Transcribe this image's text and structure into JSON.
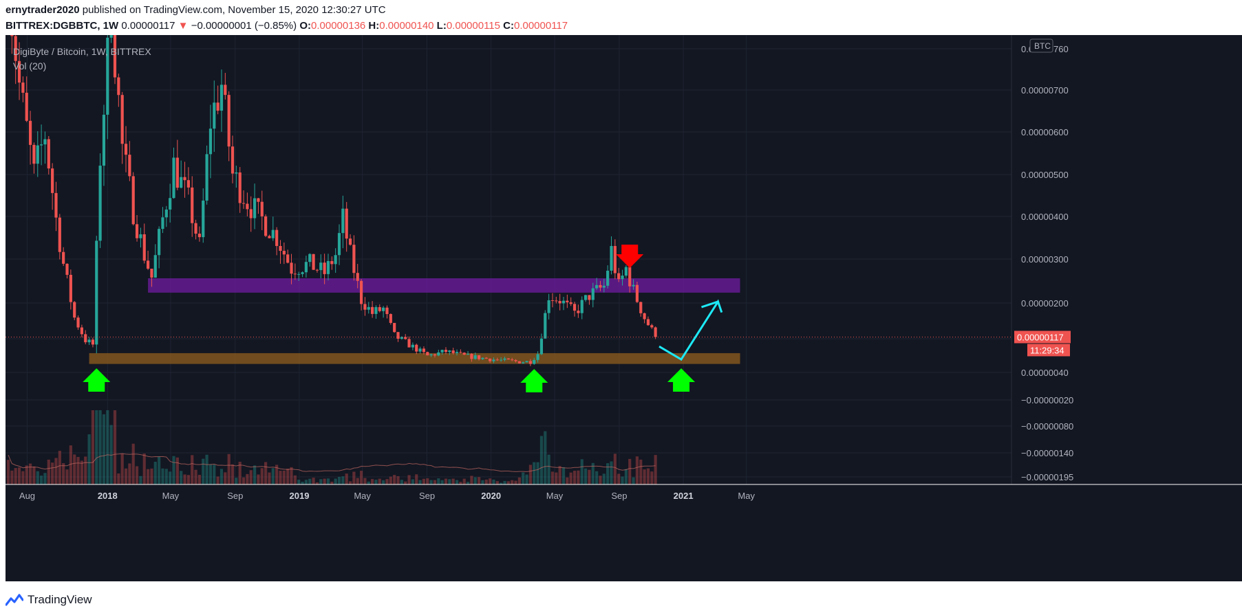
{
  "header": {
    "author": "ernytrader2020",
    "published_text": "published on TradingView.com, November 15, 2020 12:30:27 UTC",
    "symbol": "BITTREX:DGBBTC, 1W",
    "last": "0.00000117",
    "change": "−0.00000001 (−0.85%)",
    "o_label": "O:",
    "o_value": "0.00000136",
    "h_label": "H:",
    "h_value": "0.00000140",
    "l_label": "L:",
    "l_value": "0.00000115",
    "c_label": "C:",
    "c_value": "0.00000117"
  },
  "pane": {
    "title": "DigiByte / Bitcoin, 1W, BITTREX",
    "volume_label": "Vol (20)",
    "currency_badge": "BTC",
    "last_price_badge": "0.00000117",
    "countdown_badge": "11:29:34"
  },
  "footer": {
    "brand": "TradingView"
  },
  "colors": {
    "background": "#131722",
    "up": "#26a69a",
    "down": "#ef5350",
    "purple_zone": "#6a1b9a",
    "orange_zone": "#8a5a1e",
    "arrow_green": "#00ff00",
    "arrow_red": "#ff0000",
    "projection": "#1de9f6"
  },
  "chart_data": {
    "type": "candlestick",
    "timeframe": "1W",
    "y_tick_labels": [
      "0.00000760",
      "0.00000700",
      "0.00000600",
      "0.00000500",
      "0.00000400",
      "0.00000300",
      "0.00000200",
      "0.00000117",
      "0.00000040",
      "−0.00000020",
      "−0.00000080",
      "−0.00000140",
      "−0.00000195"
    ],
    "x_tick_labels": [
      {
        "text": "Aug",
        "bold": false
      },
      {
        "text": "2018",
        "bold": true
      },
      {
        "text": "May",
        "bold": false
      },
      {
        "text": "Sep",
        "bold": false
      },
      {
        "text": "2019",
        "bold": true
      },
      {
        "text": "May",
        "bold": false
      },
      {
        "text": "Sep",
        "bold": false
      },
      {
        "text": "2020",
        "bold": true
      },
      {
        "text": "May",
        "bold": false
      },
      {
        "text": "Sep",
        "bold": false
      },
      {
        "text": "2021",
        "bold": true
      },
      {
        "text": "May",
        "bold": false
      }
    ],
    "x_range": [
      "2017-06-26",
      "2021-07-12"
    ],
    "y_range": [
      -1.95e-06,
      7.7e-06
    ],
    "last_price": 1.17e-06,
    "candles_anchor_close": [
      [
        "2017-06-26",
        9e-06
      ],
      [
        "2017-07-17",
        6.8e-06
      ],
      [
        "2017-08-14",
        4.8e-06
      ],
      [
        "2017-09-04",
        5.7e-06
      ],
      [
        "2017-09-25",
        3.8e-06
      ],
      [
        "2017-10-09",
        2.8e-06
      ],
      [
        "2017-10-30",
        1.6e-06
      ],
      [
        "2017-11-20",
        1.1e-06
      ],
      [
        "2017-12-04",
        1e-06
      ],
      [
        "2017-12-18",
        5.2e-06
      ],
      [
        "2018-01-08",
        8.5e-06
      ],
      [
        "2018-01-29",
        5.4e-06
      ],
      [
        "2018-02-19",
        4e-06
      ],
      [
        "2018-03-12",
        3e-06
      ],
      [
        "2018-03-26",
        2.5e-06
      ],
      [
        "2018-04-16",
        3.8e-06
      ],
      [
        "2018-05-07",
        5e-06
      ],
      [
        "2018-06-04",
        4.2e-06
      ],
      [
        "2018-06-25",
        3.2e-06
      ],
      [
        "2018-07-16",
        6e-06
      ],
      [
        "2018-08-06",
        6.8e-06
      ],
      [
        "2018-08-27",
        4.8e-06
      ],
      [
        "2018-09-24",
        4.2e-06
      ],
      [
        "2018-10-22",
        3.8e-06
      ],
      [
        "2018-11-19",
        3.4e-06
      ],
      [
        "2018-12-17",
        2.7e-06
      ],
      [
        "2019-01-21",
        2.8e-06
      ],
      [
        "2019-02-18",
        2.6e-06
      ],
      [
        "2019-03-11",
        3e-06
      ],
      [
        "2019-03-25",
        3.8e-06
      ],
      [
        "2019-04-08",
        3e-06
      ],
      [
        "2019-04-29",
        2e-06
      ],
      [
        "2019-05-20",
        1.7e-06
      ],
      [
        "2019-06-10",
        1.8e-06
      ],
      [
        "2019-07-01",
        1.2e-06
      ],
      [
        "2019-07-29",
        1e-06
      ],
      [
        "2019-09-02",
        7.5e-07
      ],
      [
        "2019-10-07",
        8.5e-07
      ],
      [
        "2019-11-11",
        7.5e-07
      ],
      [
        "2019-12-16",
        7e-07
      ],
      [
        "2020-01-20",
        6.5e-07
      ],
      [
        "2020-02-24",
        6.2e-07
      ],
      [
        "2020-03-16",
        6.2e-07
      ],
      [
        "2020-03-30",
        8e-07
      ],
      [
        "2020-04-20",
        2.1e-06
      ],
      [
        "2020-05-11",
        2e-06
      ],
      [
        "2020-06-08",
        1.7e-06
      ],
      [
        "2020-07-06",
        2.1e-06
      ],
      [
        "2020-08-03",
        2.3e-06
      ],
      [
        "2020-08-17",
        3.1e-06
      ],
      [
        "2020-08-31",
        2.3e-06
      ],
      [
        "2020-09-14",
        2.7e-06
      ],
      [
        "2020-09-28",
        2.2e-06
      ],
      [
        "2020-10-19",
        1.6e-06
      ],
      [
        "2020-11-09",
        1.17e-06
      ]
    ],
    "zones": [
      {
        "name": "purple",
        "from": "2018-03-19",
        "to": "2021-04-19",
        "y_low": 2.16e-06,
        "y_high": 2.48e-06
      },
      {
        "name": "orange",
        "from": "2017-11-27",
        "to": "2021-04-19",
        "y_low": 5.7e-07,
        "y_high": 8.1e-07
      }
    ],
    "arrows": [
      {
        "color": "green",
        "direction": "up",
        "date": "2017-12-11"
      },
      {
        "color": "green",
        "direction": "up",
        "date": "2020-03-23"
      },
      {
        "color": "green",
        "direction": "up",
        "date": "2020-12-28"
      },
      {
        "color": "red",
        "direction": "down",
        "date": "2020-09-21"
      }
    ],
    "projection_path": [
      [
        "2020-11-16",
        9.6e-07
      ],
      [
        "2020-12-28",
        6.7e-07
      ],
      [
        "2021-03-08",
        1.96e-06
      ],
      [
        "2021-03-15",
        1.72e-06
      ]
    ]
  }
}
